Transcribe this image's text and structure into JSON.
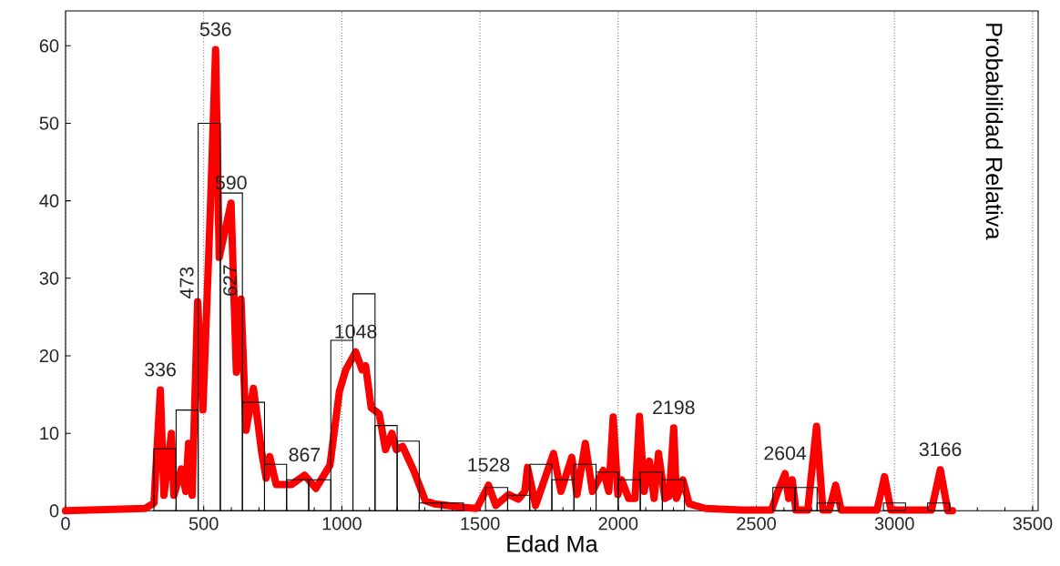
{
  "chart_data": {
    "type": "histogram",
    "xlabel": "Edad Ma",
    "ylabel": "Probabilidad Relativa",
    "xlim": [
      0,
      3520
    ],
    "ylim": [
      0,
      64.5
    ],
    "xticks": [
      0,
      500,
      1000,
      1500,
      2000,
      2500,
      3000,
      3500
    ],
    "yticks": [
      0,
      10,
      20,
      30,
      40,
      50,
      60
    ],
    "grid": "x",
    "color": "#000000",
    "bins": [
      320,
      400,
      480,
      560,
      640,
      720,
      800,
      880,
      960,
      1040,
      1120,
      1200,
      1280,
      1360,
      1440,
      1520,
      1600,
      1680,
      1760,
      1840,
      1920,
      2000,
      2080,
      2160,
      2240,
      2320,
      2400,
      2480,
      2560,
      2640,
      2720,
      2800,
      2880,
      2960,
      3040,
      3120,
      3200
    ],
    "values": [
      8,
      13,
      50,
      41,
      14,
      6,
      4,
      4,
      22,
      28,
      11,
      9,
      1,
      1,
      0,
      3,
      2,
      6,
      4,
      6,
      5,
      4,
      5,
      4,
      0,
      0,
      0,
      0,
      3,
      3,
      1,
      0,
      0,
      1,
      0,
      1
    ],
    "series": [
      {
        "type": "line",
        "color": "#ff0000",
        "line_style": "solid",
        "marker": "none",
        "x": [
          0,
          288,
          320,
          343,
          356,
          383,
          392,
          419,
          435,
          445,
          458,
          478,
          497,
          523,
          543,
          556,
          599,
          618,
          635,
          653,
          680,
          710,
          726,
          739,
          762,
          818,
          865,
          906,
          957,
          991,
          1014,
          1050,
          1073,
          1086,
          1106,
          1135,
          1158,
          1181,
          1197,
          1220,
          1261,
          1302,
          1335,
          1423,
          1488,
          1531,
          1557,
          1603,
          1639,
          1662,
          1672,
          1701,
          1766,
          1793,
          1832,
          1851,
          1881,
          1907,
          1946,
          1966,
          1982,
          1999,
          2012,
          2038,
          2061,
          2077,
          2094,
          2113,
          2130,
          2146,
          2169,
          2185,
          2201,
          2211,
          2234,
          2257,
          2316,
          2447,
          2555,
          2578,
          2604,
          2617,
          2630,
          2643,
          2686,
          2718,
          2741,
          2764,
          2787,
          2807,
          2937,
          2964,
          2987,
          3134,
          3166,
          3193,
          3210
        ],
        "values": [
          0,
          0.3,
          1,
          15.6,
          2,
          10,
          2,
          5.4,
          2.5,
          8.7,
          2,
          27,
          13,
          37.8,
          59.5,
          32.7,
          39.7,
          17.9,
          27.3,
          10.4,
          15.8,
          7.5,
          4.2,
          7,
          3.4,
          3.4,
          4.6,
          2.9,
          5.9,
          15.4,
          18.2,
          20.5,
          18.2,
          18.7,
          13.3,
          12.5,
          7.9,
          10,
          7.9,
          8.3,
          5.1,
          1.3,
          0.9,
          0.5,
          0.3,
          3.3,
          0.7,
          2.1,
          1.5,
          2.5,
          5.6,
          0.7,
          7.4,
          2.5,
          6.9,
          2.1,
          8.7,
          2.5,
          5.2,
          2.5,
          12.1,
          2.1,
          4,
          1.6,
          1.6,
          12.2,
          2.5,
          6.4,
          1.6,
          7.4,
          1.6,
          1.9,
          10.7,
          1.6,
          4,
          0.9,
          0.3,
          0.1,
          0.1,
          2.5,
          4.8,
          1.6,
          4,
          0.1,
          0.1,
          10.9,
          0.1,
          0.1,
          3.3,
          0.1,
          0.1,
          4.4,
          0.1,
          0.1,
          5.3,
          0,
          0
        ]
      }
    ],
    "annotations": [
      {
        "text": "336",
        "x": 343,
        "y": 15.6
      },
      {
        "text": "473",
        "x": 478,
        "y": 27
      },
      {
        "text": "536",
        "x": 543,
        "y": 59.5
      },
      {
        "text": "590",
        "x": 599,
        "y": 39.7
      },
      {
        "text": "627",
        "x": 635,
        "y": 27.3
      },
      {
        "text": "867",
        "x": 865,
        "y": 4.6
      },
      {
        "text": "1048",
        "x": 1050,
        "y": 20.5
      },
      {
        "text": "1528",
        "x": 1531,
        "y": 3.3
      },
      {
        "text": "2198",
        "x": 2201,
        "y": 10.7
      },
      {
        "text": "2604",
        "x": 2604,
        "y": 4.8
      },
      {
        "text": "3166",
        "x": 3166,
        "y": 5.3
      }
    ]
  }
}
